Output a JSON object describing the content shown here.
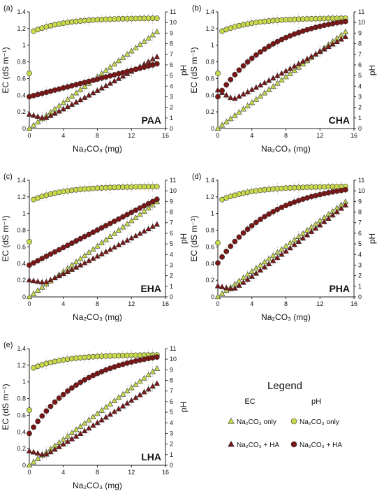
{
  "legend": {
    "title": "Legend",
    "col_ec": "EC",
    "col_ph": "pH",
    "items": [
      {
        "key": "ec_only",
        "label": "Na₂CO₃ only",
        "marker": "triangle",
        "color": "#c8d94a"
      },
      {
        "key": "ec_ha",
        "label": "Na₂CO₃ + HA",
        "marker": "triangle",
        "color": "#7a1616"
      },
      {
        "key": "ph_only",
        "label": "Na₂CO₃ only",
        "marker": "circle",
        "color": "#c8d94a"
      },
      {
        "key": "ph_ha",
        "label": "Na₂CO₃ + HA",
        "marker": "circle",
        "color": "#7a1616"
      }
    ]
  },
  "colors": {
    "na2co3_only": "#c8d94a",
    "na2co3_ha": "#7a1616",
    "error_bar": "#9a9a9a"
  },
  "chart_data": [
    {
      "type": "scatter",
      "panel_label": "(a)",
      "ha_label": "PAA",
      "xlabel": "Na₂CO₃ (mg)",
      "ylabel_left": "EC (dS m⁻¹)",
      "ylabel_right": "pH",
      "xlim": [
        0,
        16
      ],
      "ylim_left": [
        0,
        1.4
      ],
      "ylim_right": [
        0,
        11
      ],
      "xticks": [
        "0",
        "4",
        "8",
        "12",
        "16"
      ],
      "yticks_left": [
        "0",
        "0.2",
        "0.4",
        "0.6",
        "0.8",
        "1",
        "1.2",
        "1.4"
      ],
      "yticks_right": [
        "0",
        "1",
        "2",
        "3",
        "4",
        "5",
        "6",
        "7",
        "8",
        "9",
        "10",
        "11"
      ],
      "series": [
        {
          "key": "ec_only",
          "axis": "left",
          "marker": "triangle",
          "ends": [
            0.0,
            1.16
          ],
          "shape": "linear"
        },
        {
          "key": "ec_ha",
          "axis": "left",
          "marker": "triangle",
          "ends": [
            0.17,
            0.86
          ],
          "shape": "linear_dip",
          "min": 0.12
        },
        {
          "key": "ph_only",
          "axis": "right",
          "marker": "circle",
          "ends": [
            5.2,
            10.4
          ],
          "shape": "saturating",
          "start2": 9.0
        },
        {
          "key": "ph_ha",
          "axis": "right",
          "marker": "circle",
          "ends": [
            3.0,
            6.1
          ],
          "shape": "linear"
        }
      ]
    },
    {
      "type": "scatter",
      "panel_label": "(b)",
      "ha_label": "CHA",
      "xlabel": "Na₂CO₃ (mg)",
      "ylabel_left": "EC (dS m⁻¹)",
      "ylabel_right": "pH",
      "xlim": [
        0,
        16
      ],
      "ylim_left": [
        0,
        1.4
      ],
      "ylim_right": [
        0,
        11
      ],
      "xticks": [
        "0",
        "4",
        "8",
        "12",
        "16"
      ],
      "yticks_left": [
        "0",
        "0.2",
        "0.4",
        "0.6",
        "0.8",
        "1",
        "1.2",
        "1.4"
      ],
      "yticks_right": [
        "0",
        "1",
        "2",
        "3",
        "4",
        "5",
        "6",
        "7",
        "8",
        "9",
        "10",
        "11"
      ],
      "series": [
        {
          "key": "ec_only",
          "axis": "left",
          "marker": "triangle",
          "ends": [
            0.0,
            1.16
          ],
          "shape": "linear"
        },
        {
          "key": "ec_ha",
          "axis": "left",
          "marker": "triangle",
          "ends": [
            0.46,
            1.1
          ],
          "shape": "linear_dip",
          "min": 0.35
        },
        {
          "key": "ph_only",
          "axis": "right",
          "marker": "circle",
          "ends": [
            5.2,
            10.4
          ],
          "shape": "saturating",
          "start2": 9.0
        },
        {
          "key": "ph_ha",
          "axis": "right",
          "marker": "circle",
          "ends": [
            3.0,
            10.1
          ],
          "shape": "saturating_slow"
        }
      ]
    },
    {
      "type": "scatter",
      "panel_label": "(c)",
      "ha_label": "EHA",
      "xlabel": "Na₂CO₃ (mg)",
      "ylabel_left": "EC (dS m⁻¹)",
      "ylabel_right": "pH",
      "xlim": [
        0,
        16
      ],
      "ylim_left": [
        0,
        1.4
      ],
      "ylim_right": [
        0,
        11
      ],
      "xticks": [
        "0",
        "4",
        "8",
        "12",
        "16"
      ],
      "yticks_left": [
        "0",
        "0.2",
        "0.4",
        "0.6",
        "0.8",
        "1",
        "1.2",
        "1.4"
      ],
      "yticks_right": [
        "0",
        "1",
        "2",
        "3",
        "4",
        "5",
        "6",
        "7",
        "8",
        "9",
        "10",
        "11"
      ],
      "series": [
        {
          "key": "ec_only",
          "axis": "left",
          "marker": "triangle",
          "ends": [
            0.0,
            1.14
          ],
          "shape": "linear"
        },
        {
          "key": "ec_ha",
          "axis": "left",
          "marker": "triangle",
          "ends": [
            0.2,
            0.87
          ],
          "shape": "linear_dip",
          "min": 0.17
        },
        {
          "key": "ph_only",
          "axis": "right",
          "marker": "circle",
          "ends": [
            5.2,
            10.4
          ],
          "shape": "saturating",
          "start2": 9.0
        },
        {
          "key": "ph_ha",
          "axis": "right",
          "marker": "circle",
          "ends": [
            3.0,
            9.2
          ],
          "shape": "linear"
        }
      ]
    },
    {
      "type": "scatter",
      "panel_label": "(d)",
      "ha_label": "PHA",
      "xlabel": "Na₂CO₃ (mg)",
      "ylabel_left": "EC (dS m⁻¹)",
      "ylabel_right": "pH",
      "xlim": [
        0,
        16
      ],
      "ylim_left": [
        0,
        1.4
      ],
      "ylim_right": [
        0,
        11
      ],
      "xticks": [
        "0",
        "4",
        "8",
        "12",
        "16"
      ],
      "yticks_left": [
        "0",
        "0.2",
        "0.4",
        "0.6",
        "0.8",
        "1",
        "1.2",
        "1.4"
      ],
      "yticks_right": [
        "0",
        "1",
        "2",
        "3",
        "4",
        "5",
        "6",
        "7",
        "8",
        "9",
        "10",
        "11"
      ],
      "series": [
        {
          "key": "ec_only",
          "axis": "left",
          "marker": "triangle",
          "ends": [
            0.0,
            1.14
          ],
          "shape": "linear"
        },
        {
          "key": "ec_ha",
          "axis": "left",
          "marker": "triangle",
          "ends": [
            0.13,
            1.1
          ],
          "shape": "linear_dip",
          "min": 0.09
        },
        {
          "key": "ph_only",
          "axis": "right",
          "marker": "circle",
          "ends": [
            5.1,
            10.4
          ],
          "shape": "saturating",
          "start2": 9.0
        },
        {
          "key": "ph_ha",
          "axis": "right",
          "marker": "circle",
          "ends": [
            3.2,
            10.1
          ],
          "shape": "saturating_slow"
        }
      ]
    },
    {
      "type": "scatter",
      "panel_label": "(e)",
      "ha_label": "LHA",
      "xlabel": "Na₂CO₃ (mg)",
      "ylabel_left": "EC (dS m⁻¹)",
      "ylabel_right": "pH",
      "xlim": [
        0,
        16
      ],
      "ylim_left": [
        0,
        1.4
      ],
      "ylim_right": [
        0,
        11
      ],
      "xticks": [
        "0",
        "4",
        "8",
        "12",
        "16"
      ],
      "yticks_left": [
        "0",
        "0.2",
        "0.4",
        "0.6",
        "0.8",
        "1",
        "1.2",
        "1.4"
      ],
      "yticks_right": [
        "0",
        "1",
        "2",
        "3",
        "4",
        "5",
        "6",
        "7",
        "8",
        "9",
        "10",
        "11"
      ],
      "series": [
        {
          "key": "ec_only",
          "axis": "left",
          "marker": "triangle",
          "ends": [
            0.0,
            1.16
          ],
          "shape": "linear"
        },
        {
          "key": "ec_ha",
          "axis": "left",
          "marker": "triangle",
          "ends": [
            0.17,
            0.98
          ],
          "shape": "linear_dip",
          "min": 0.12
        },
        {
          "key": "ph_only",
          "axis": "right",
          "marker": "circle",
          "ends": [
            5.2,
            10.4
          ],
          "shape": "saturating",
          "start2": 9.0
        },
        {
          "key": "ph_ha",
          "axis": "right",
          "marker": "circle",
          "ends": [
            3.0,
            10.2
          ],
          "shape": "saturating_slow"
        }
      ]
    }
  ]
}
